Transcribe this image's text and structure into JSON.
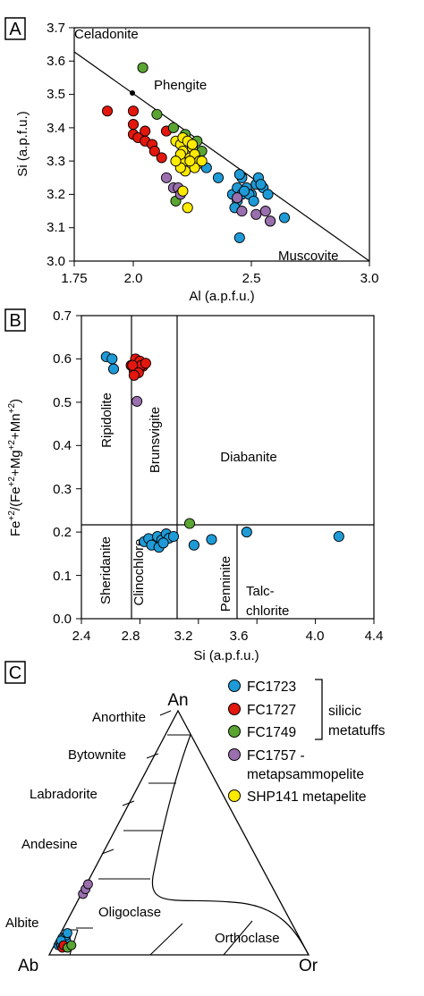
{
  "colors": {
    "FC1723": "#1e9bd7",
    "FC1727": "#e3170d",
    "FC1749": "#5aa532",
    "FC1757": "#9a6fae",
    "SHP141": "#ffea00"
  },
  "chart_data": [
    {
      "panel": "A",
      "type": "scatter",
      "xlabel": "Al (a.p.f.u.)",
      "ylabel": "Si (a.p.f.u.)",
      "xlim": [
        1.75,
        3.0
      ],
      "ylim": [
        3.0,
        3.7
      ],
      "x_ticks": [
        "1.75",
        "2.0",
        "2.5",
        "3.0"
      ],
      "y_ticks": [
        "3.0",
        "3.1",
        "3.2",
        "3.3",
        "3.4",
        "3.5",
        "3.6",
        "3.7"
      ],
      "annotations": [
        "Celadonite",
        "Phengite",
        "Muscovite"
      ],
      "reference_line": {
        "from": [
          1.75,
          3.62
        ],
        "to": [
          3.0,
          3.0
        ]
      },
      "phengite_point": [
        2.0,
        3.5
      ],
      "series": [
        {
          "key": "FC1723",
          "x": [
            2.36,
            2.42,
            2.44,
            2.46,
            2.48,
            2.5,
            2.52,
            2.53,
            2.55,
            2.57,
            2.44,
            2.43,
            2.46,
            2.49,
            2.51,
            2.54,
            2.47,
            2.45,
            2.64,
            2.45,
            2.31
          ],
          "y": [
            3.25,
            3.2,
            3.22,
            3.25,
            3.22,
            3.2,
            3.23,
            3.25,
            3.22,
            3.2,
            3.18,
            3.16,
            3.2,
            3.2,
            3.18,
            3.23,
            3.21,
            3.07,
            3.13,
            3.26,
            3.28
          ]
        },
        {
          "key": "FC1727",
          "x": [
            1.89,
            2.0,
            2.0,
            2.0,
            2.02,
            2.05,
            2.05,
            2.08,
            2.09,
            2.12,
            2.14
          ],
          "y": [
            3.45,
            3.45,
            3.41,
            3.38,
            3.37,
            3.39,
            3.36,
            3.35,
            3.33,
            3.31,
            3.39
          ]
        },
        {
          "key": "FC1749",
          "x": [
            2.04,
            2.1,
            2.17,
            2.22,
            2.25,
            2.27,
            2.29,
            2.18
          ],
          "y": [
            3.58,
            3.44,
            3.4,
            3.38,
            3.35,
            3.36,
            3.33,
            3.18
          ]
        },
        {
          "key": "FC1757",
          "x": [
            2.14,
            2.17,
            2.19,
            2.2,
            2.46,
            2.52,
            2.56,
            2.58,
            2.58,
            2.44
          ],
          "y": [
            3.25,
            3.22,
            3.22,
            3.2,
            3.15,
            3.14,
            3.15,
            3.12,
            3.12,
            3.19
          ]
        },
        {
          "key": "SHP141",
          "x": [
            2.18,
            2.2,
            2.21,
            2.22,
            2.24,
            2.25,
            2.26,
            2.27,
            2.28,
            2.2,
            2.21,
            2.23,
            2.26,
            2.22,
            2.24,
            2.25,
            2.2,
            2.23,
            2.29,
            2.18,
            2.21
          ],
          "y": [
            3.36,
            3.35,
            3.33,
            3.3,
            3.31,
            3.34,
            3.32,
            3.29,
            3.3,
            3.32,
            3.37,
            3.36,
            3.28,
            3.27,
            3.3,
            3.35,
            3.28,
            3.16,
            3.3,
            3.3,
            3.21
          ]
        }
      ]
    },
    {
      "panel": "B",
      "type": "scatter",
      "xlabel": "Si (a.p.f.u.)",
      "ylabel_parts": [
        "Fe",
        "+2",
        "/(Fe",
        "+2",
        "+Mg",
        "+2",
        "+Mn",
        "+2",
        ")"
      ],
      "xlim": [
        2.4,
        4.4
      ],
      "ylim": [
        0.0,
        0.7
      ],
      "x_ticks": [
        "2.4",
        "2.8",
        "3.2",
        "3.6",
        "4.0",
        "4.4"
      ],
      "y_ticks": [
        "0.0",
        "0.1",
        "0.2",
        "0.3",
        "0.4",
        "0.5",
        "0.6",
        "0.7"
      ],
      "fields": [
        "Ripidolite",
        "Brunsvigite",
        "Diabanite",
        "Sheridanite",
        "Clinochlore",
        "Penninite",
        "Talc-chlorite"
      ],
      "boundaries": {
        "horizontal": 0.217,
        "vertical_upper": [
          2.78,
          3.08
        ],
        "vertical_lower": [
          2.78,
          3.08,
          3.48
        ]
      },
      "series": [
        {
          "key": "FC1723",
          "x": [
            2.57,
            2.61,
            2.62,
            2.83,
            2.86,
            2.9,
            2.92,
            2.95,
            2.98,
            3.0,
            3.03,
            2.88,
            2.93,
            2.96,
            3.17,
            3.29,
            3.53,
            4.16
          ],
          "y": [
            0.605,
            0.6,
            0.577,
            0.178,
            0.185,
            0.172,
            0.19,
            0.182,
            0.196,
            0.186,
            0.19,
            0.17,
            0.165,
            0.175,
            0.17,
            0.183,
            0.2,
            0.19
          ]
        },
        {
          "key": "FC1727",
          "x": [
            2.74,
            2.77,
            2.8,
            2.82,
            2.76,
            2.78,
            2.81,
            2.84,
            2.75,
            2.79,
            2.76
          ],
          "y": [
            0.585,
            0.6,
            0.595,
            0.583,
            0.573,
            0.58,
            0.585,
            0.59,
            0.585,
            0.568,
            0.562
          ]
        },
        {
          "key": "FC1749",
          "x": [
            3.14
          ],
          "y": [
            0.22
          ]
        },
        {
          "key": "FC1757",
          "x": [
            2.78
          ],
          "y": [
            0.502
          ]
        }
      ]
    },
    {
      "panel": "C",
      "type": "ternary",
      "apices": [
        "An",
        "Ab",
        "Or"
      ],
      "field_labels": [
        "Anorthite",
        "Bytownite",
        "Labradorite",
        "Andesine",
        "Oligoclase",
        "Albite",
        "Orthoclase"
      ],
      "series": [
        {
          "key": "FC1723",
          "points": [
            [
              0.98,
              0.01,
              0.01
            ],
            [
              0.96,
              0.02,
              0.02
            ],
            [
              0.97,
              0.02,
              0.01
            ],
            [
              0.95,
              0.04,
              0.01
            ],
            [
              0.94,
              0.03,
              0.03
            ],
            [
              0.97,
              0.01,
              0.02
            ],
            [
              0.93,
              0.05,
              0.02
            ],
            [
              0.96,
              0.03,
              0.01
            ],
            [
              0.92,
              0.06,
              0.02
            ]
          ]
        },
        {
          "key": "FC1727",
          "points": [
            [
              0.97,
              0.0,
              0.03
            ],
            [
              0.96,
              0.01,
              0.03
            ]
          ]
        },
        {
          "key": "FC1749",
          "points": [
            [
              0.95,
              0.0,
              0.05
            ],
            [
              0.93,
              0.01,
              0.06
            ]
          ]
        },
        {
          "key": "FC1757",
          "points": [
            [
              0.78,
              0.22,
              0.0
            ],
            [
              0.76,
              0.24,
              0.0
            ],
            [
              0.74,
              0.26,
              0.0
            ]
          ]
        }
      ]
    }
  ],
  "panel_labels": [
    "A",
    "B",
    "C"
  ],
  "legend": {
    "items": [
      {
        "key": "FC1723",
        "label": "FC1723"
      },
      {
        "key": "FC1727",
        "label": "FC1727"
      },
      {
        "key": "FC1749",
        "label": "FC1749"
      },
      {
        "key": "FC1757",
        "label": "FC1757 -"
      },
      {
        "key": "SHP141",
        "label": "SHP141 metapelite"
      }
    ],
    "extra_line": "metapsammopelite",
    "bracket_text": [
      "silicic",
      "metatuffs"
    ]
  }
}
